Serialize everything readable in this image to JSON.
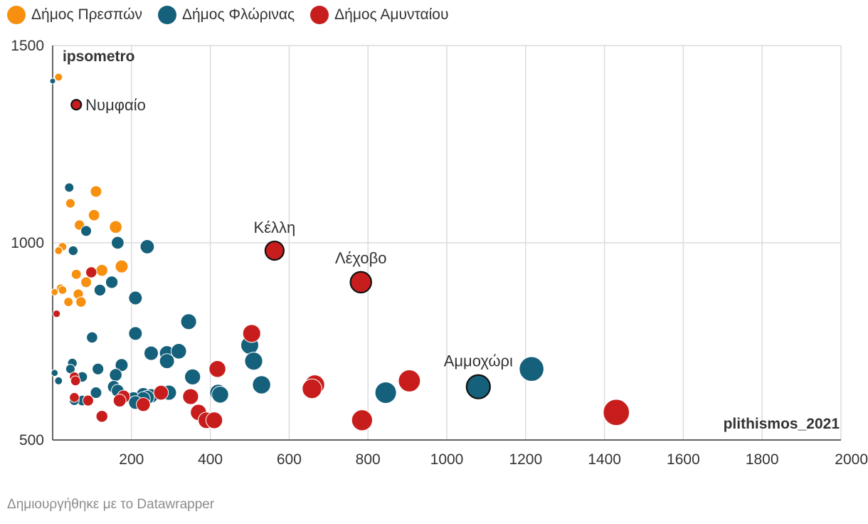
{
  "legend": [
    {
      "label": "Δήμος Πρεσπών",
      "color": "#f7900f"
    },
    {
      "label": "Δήμος Φλώρινας",
      "color": "#15607a"
    },
    {
      "label": "Δήμος Αμυνταίου",
      "color": "#c71e1d"
    }
  ],
  "footer": "Δημιουργήθηκε με το Datawrapper",
  "chart_data": {
    "type": "scatter",
    "xlabel": "plithismos_2021",
    "ylabel": "ipsometro",
    "xlim": [
      0,
      2000
    ],
    "ylim": [
      500,
      1500
    ],
    "x_ticks": [
      200,
      400,
      600,
      800,
      1000,
      1200,
      1400,
      1600,
      1800,
      2000
    ],
    "y_ticks": [
      500,
      1000,
      1500
    ],
    "grid": true,
    "legend_position": "top-left",
    "size_encodes": "plithismos_2021",
    "series": [
      {
        "name": "Δήμος Πρεσπών",
        "color": "#f7900f",
        "points": [
          {
            "x": 15,
            "y": 1420
          },
          {
            "x": 45,
            "y": 1100
          },
          {
            "x": 110,
            "y": 1130
          },
          {
            "x": 105,
            "y": 1070
          },
          {
            "x": 68,
            "y": 1045
          },
          {
            "x": 160,
            "y": 1040
          },
          {
            "x": 25,
            "y": 990
          },
          {
            "x": 15,
            "y": 980
          },
          {
            "x": 60,
            "y": 920
          },
          {
            "x": 125,
            "y": 930
          },
          {
            "x": 175,
            "y": 940
          },
          {
            "x": 85,
            "y": 900
          },
          {
            "x": 20,
            "y": 885
          },
          {
            "x": 25,
            "y": 880
          },
          {
            "x": 5,
            "y": 875
          },
          {
            "x": 65,
            "y": 870
          },
          {
            "x": 40,
            "y": 850
          },
          {
            "x": 72,
            "y": 850
          }
        ]
      },
      {
        "name": "Δήμος Φλώρινας",
        "color": "#15607a",
        "points": [
          {
            "x": 0,
            "y": 1410
          },
          {
            "x": 42,
            "y": 1140
          },
          {
            "x": 85,
            "y": 1030
          },
          {
            "x": 165,
            "y": 1000
          },
          {
            "x": 240,
            "y": 990
          },
          {
            "x": 52,
            "y": 980
          },
          {
            "x": 150,
            "y": 900
          },
          {
            "x": 120,
            "y": 880
          },
          {
            "x": 210,
            "y": 860
          },
          {
            "x": 345,
            "y": 800
          },
          {
            "x": 100,
            "y": 760
          },
          {
            "x": 210,
            "y": 770
          },
          {
            "x": 250,
            "y": 720
          },
          {
            "x": 290,
            "y": 720
          },
          {
            "x": 320,
            "y": 725
          },
          {
            "x": 290,
            "y": 700
          },
          {
            "x": 175,
            "y": 690
          },
          {
            "x": 500,
            "y": 740
          },
          {
            "x": 510,
            "y": 700
          },
          {
            "x": 50,
            "y": 695
          },
          {
            "x": 45,
            "y": 680
          },
          {
            "x": 115,
            "y": 680
          },
          {
            "x": 5,
            "y": 670
          },
          {
            "x": 160,
            "y": 665
          },
          {
            "x": 355,
            "y": 660
          },
          {
            "x": 75,
            "y": 660
          },
          {
            "x": 15,
            "y": 650
          },
          {
            "x": 530,
            "y": 640
          },
          {
            "x": 155,
            "y": 635
          },
          {
            "x": 165,
            "y": 625
          },
          {
            "x": 110,
            "y": 620
          },
          {
            "x": 420,
            "y": 620
          },
          {
            "x": 425,
            "y": 615
          },
          {
            "x": 230,
            "y": 615
          },
          {
            "x": 250,
            "y": 612
          },
          {
            "x": 240,
            "y": 608
          },
          {
            "x": 205,
            "y": 605
          },
          {
            "x": 295,
            "y": 620
          },
          {
            "x": 230,
            "y": 605
          },
          {
            "x": 210,
            "y": 595
          },
          {
            "x": 75,
            "y": 600
          },
          {
            "x": 55,
            "y": 600
          },
          {
            "x": 845,
            "y": 620
          },
          {
            "x": 1080,
            "y": 635
          },
          {
            "x": 1215,
            "y": 680
          }
        ]
      },
      {
        "name": "Δήμος Αμυνταίου",
        "color": "#c71e1d",
        "points": [
          {
            "x": 60,
            "y": 1350
          },
          {
            "x": 10,
            "y": 820
          },
          {
            "x": 98,
            "y": 925
          },
          {
            "x": 563,
            "y": 980
          },
          {
            "x": 782,
            "y": 900
          },
          {
            "x": 505,
            "y": 770
          },
          {
            "x": 418,
            "y": 680
          },
          {
            "x": 55,
            "y": 660
          },
          {
            "x": 58,
            "y": 650
          },
          {
            "x": 905,
            "y": 650
          },
          {
            "x": 665,
            "y": 640
          },
          {
            "x": 658,
            "y": 630
          },
          {
            "x": 275,
            "y": 620
          },
          {
            "x": 350,
            "y": 610
          },
          {
            "x": 180,
            "y": 610
          },
          {
            "x": 170,
            "y": 600
          },
          {
            "x": 230,
            "y": 590
          },
          {
            "x": 55,
            "y": 608
          },
          {
            "x": 90,
            "y": 600
          },
          {
            "x": 370,
            "y": 570
          },
          {
            "x": 125,
            "y": 560
          },
          {
            "x": 390,
            "y": 550
          },
          {
            "x": 410,
            "y": 550
          },
          {
            "x": 785,
            "y": 550
          },
          {
            "x": 1430,
            "y": 570
          }
        ]
      }
    ],
    "annotations": [
      {
        "label": "Νυμφαίο",
        "x": 60,
        "y": 1350
      },
      {
        "label": "Κέλλη",
        "x": 563,
        "y": 980
      },
      {
        "label": "Λέχοβο",
        "x": 782,
        "y": 900
      },
      {
        "label": "Αμμοχώρι",
        "x": 1080,
        "y": 635
      }
    ]
  }
}
